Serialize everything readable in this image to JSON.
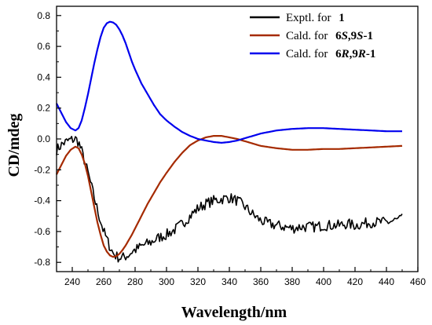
{
  "chart_data": {
    "type": "line",
    "xlabel": "Wavelength/nm",
    "ylabel": "CD/mdeg",
    "xlim": [
      230,
      460
    ],
    "ylim": [
      -0.86,
      0.86
    ],
    "xticks": [
      240,
      260,
      280,
      300,
      320,
      340,
      360,
      380,
      400,
      420,
      440,
      460
    ],
    "yticks": [
      -0.8,
      -0.6,
      -0.4,
      -0.2,
      0.0,
      0.2,
      0.4,
      0.6,
      0.8
    ],
    "ytick_labels": [
      "-0.8",
      "-0.6",
      "-0.4",
      "-0.2",
      "0.0",
      "0.2",
      "0.4",
      "0.6",
      "0.8"
    ],
    "grid": false,
    "legend_position": "top-right",
    "series": [
      {
        "name": "Exptl. for 1",
        "name_parts": [
          "Exptl. for ",
          "1"
        ],
        "color": "#000000",
        "noisy": true,
        "x": [
          230,
          234,
          238,
          242,
          244,
          246,
          248,
          250,
          252,
          254,
          256,
          258,
          260,
          262,
          264,
          266,
          268,
          270,
          272,
          274,
          276,
          278,
          280,
          285,
          290,
          295,
          300,
          305,
          310,
          315,
          320,
          325,
          330,
          335,
          340,
          345,
          350,
          355,
          360,
          365,
          370,
          375,
          380,
          385,
          390,
          395,
          400,
          405,
          410,
          415,
          420,
          425,
          430,
          435,
          440,
          445,
          450
        ],
        "y": [
          -0.07,
          -0.03,
          -0.01,
          0.0,
          -0.02,
          -0.08,
          -0.15,
          -0.22,
          -0.3,
          -0.38,
          -0.46,
          -0.53,
          -0.6,
          -0.65,
          -0.7,
          -0.74,
          -0.76,
          -0.77,
          -0.77,
          -0.76,
          -0.75,
          -0.73,
          -0.72,
          -0.69,
          -0.67,
          -0.64,
          -0.62,
          -0.59,
          -0.55,
          -0.5,
          -0.45,
          -0.42,
          -0.4,
          -0.39,
          -0.38,
          -0.4,
          -0.44,
          -0.49,
          -0.53,
          -0.55,
          -0.56,
          -0.57,
          -0.58,
          -0.57,
          -0.57,
          -0.57,
          -0.56,
          -0.56,
          -0.56,
          -0.55,
          -0.56,
          -0.55,
          -0.54,
          -0.54,
          -0.54,
          -0.53,
          -0.52
        ]
      },
      {
        "name": "Cald. for 6S,9S-1",
        "name_parts": [
          "Cald. for ",
          "6",
          "S",
          ",9",
          "S",
          "-1"
        ],
        "color": "#a52a00",
        "noisy": false,
        "x": [
          230,
          233,
          236,
          239,
          242,
          244,
          246,
          248,
          250,
          252,
          254,
          256,
          258,
          260,
          262,
          264,
          266,
          268,
          270,
          272,
          274,
          276,
          278,
          280,
          284,
          288,
          292,
          296,
          300,
          305,
          310,
          315,
          320,
          325,
          330,
          335,
          340,
          345,
          350,
          355,
          360,
          370,
          380,
          390,
          400,
          410,
          420,
          430,
          440,
          450
        ],
        "y": [
          -0.23,
          -0.17,
          -0.11,
          -0.07,
          -0.05,
          -0.06,
          -0.1,
          -0.16,
          -0.24,
          -0.34,
          -0.44,
          -0.54,
          -0.62,
          -0.69,
          -0.73,
          -0.755,
          -0.765,
          -0.76,
          -0.745,
          -0.72,
          -0.69,
          -0.655,
          -0.62,
          -0.58,
          -0.5,
          -0.42,
          -0.35,
          -0.28,
          -0.22,
          -0.15,
          -0.09,
          -0.04,
          -0.01,
          0.01,
          0.02,
          0.02,
          0.01,
          0.0,
          -0.015,
          -0.03,
          -0.045,
          -0.06,
          -0.07,
          -0.07,
          -0.065,
          -0.065,
          -0.06,
          -0.055,
          -0.05,
          -0.045
        ]
      },
      {
        "name": "Cald. for 6R,9R-1",
        "name_parts": [
          "Cald. for ",
          "6",
          "R",
          ",9",
          "R",
          "-1"
        ],
        "color": "#0000ee",
        "noisy": false,
        "x": [
          230,
          233,
          236,
          239,
          242,
          244,
          246,
          248,
          250,
          252,
          254,
          256,
          258,
          260,
          262,
          264,
          266,
          268,
          270,
          272,
          274,
          276,
          278,
          280,
          284,
          288,
          292,
          296,
          300,
          305,
          310,
          315,
          320,
          325,
          330,
          335,
          340,
          345,
          350,
          355,
          360,
          370,
          380,
          390,
          400,
          410,
          420,
          430,
          440,
          450
        ],
        "y": [
          0.23,
          0.17,
          0.11,
          0.07,
          0.055,
          0.07,
          0.12,
          0.2,
          0.29,
          0.39,
          0.49,
          0.58,
          0.66,
          0.72,
          0.75,
          0.76,
          0.755,
          0.74,
          0.71,
          0.67,
          0.62,
          0.56,
          0.5,
          0.45,
          0.36,
          0.29,
          0.22,
          0.16,
          0.12,
          0.08,
          0.045,
          0.02,
          0.0,
          -0.01,
          -0.02,
          -0.025,
          -0.02,
          -0.01,
          0.005,
          0.02,
          0.035,
          0.055,
          0.065,
          0.07,
          0.07,
          0.065,
          0.06,
          0.055,
          0.05,
          0.05
        ]
      }
    ]
  }
}
